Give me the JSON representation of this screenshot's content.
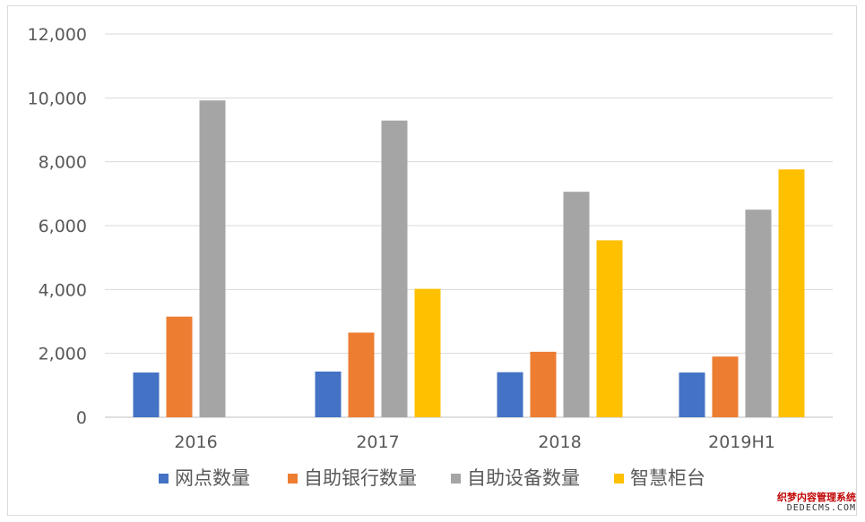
{
  "chart_data": {
    "type": "bar",
    "title": "",
    "xlabel": "",
    "ylabel": "",
    "categories": [
      "2016",
      "2017",
      "2018",
      "2019H1"
    ],
    "series": [
      {
        "name": "网点数量",
        "color": "#4472C4",
        "values": [
          1400,
          1430,
          1410,
          1400
        ]
      },
      {
        "name": "自助银行数量",
        "color": "#ED7D31",
        "values": [
          3150,
          2650,
          2050,
          1900
        ]
      },
      {
        "name": "自助设备数量",
        "color": "#A5A5A5",
        "values": [
          9920,
          9290,
          7060,
          6500
        ]
      },
      {
        "name": "智慧柜台",
        "color": "#FFC000",
        "values": [
          0,
          4020,
          5540,
          7760
        ]
      }
    ],
    "ylim": [
      0,
      12000
    ],
    "yticks": [
      "0",
      "2,000",
      "4,000",
      "6,000",
      "8,000",
      "10,000",
      "12,000"
    ],
    "ytick_values": [
      0,
      2000,
      4000,
      6000,
      8000,
      10000,
      12000
    ],
    "grid": true,
    "legend_position": "bottom"
  },
  "watermark": {
    "line1": "织梦内容管理系统",
    "line2": "DEDECMS.COM"
  }
}
